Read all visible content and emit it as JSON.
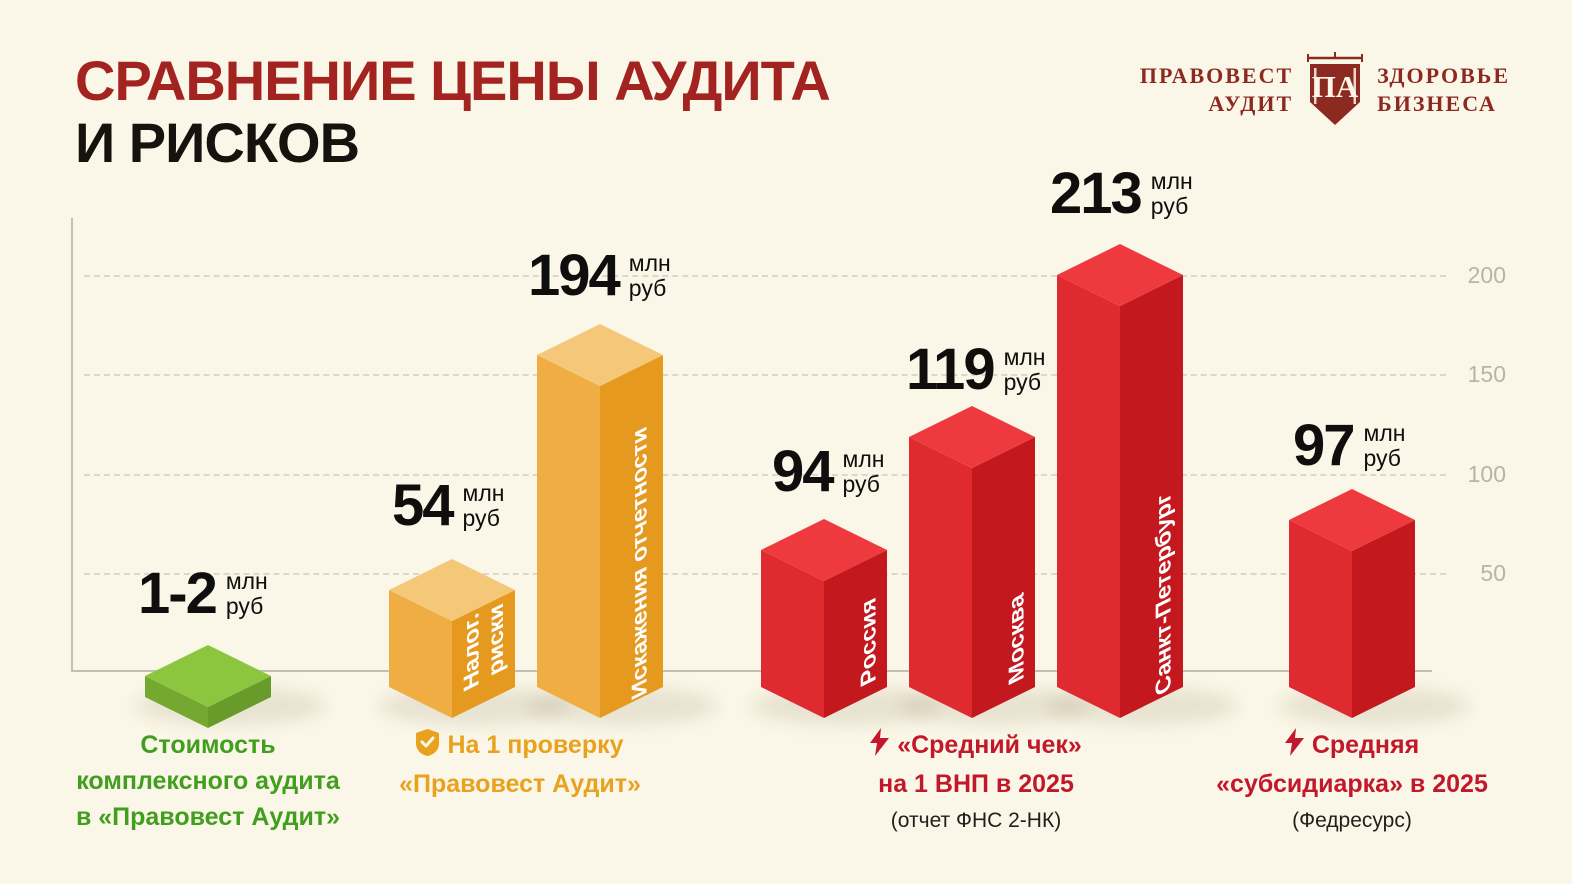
{
  "header": {
    "title_line1": "СРАВНЕНИЕ ЦЕНЫ АУДИТА",
    "title_line2": "И РИСКОВ"
  },
  "logo": {
    "name_line1": "ПРАВОВЕСТ",
    "name_line2": "АУДИТ",
    "monogram": "ПА",
    "tagline_line1": "ЗДОРОВЬЕ",
    "tagline_line2": "БИЗНЕСА"
  },
  "chart_data": {
    "type": "bar",
    "title": "Сравнение цены аудита и рисков",
    "unit": "млн руб",
    "unit_line1": "млн",
    "unit_line2": "руб",
    "ylim": [
      0,
      220
    ],
    "yticks": [
      50,
      100,
      150,
      200
    ],
    "ytick_labels": [
      "50",
      "100",
      "150",
      "200"
    ],
    "grid": "horizontal-dashed",
    "legend": "none",
    "bars": [
      {
        "group": "Стоимость комплексного аудита в «Правовест Аудит»",
        "label": "",
        "value_label": "1-2",
        "value": 1.5,
        "value_min": 1,
        "value_max": 2,
        "color": "green",
        "shape": "tile"
      },
      {
        "group": "На 1 проверку «Правовест Аудит»",
        "label": "Налог.\nриски",
        "value_label": "54",
        "value": 54,
        "color": "yellow",
        "shape": "column"
      },
      {
        "group": "На 1 проверку «Правовест Аудит»",
        "label": "Искажения отчетности",
        "value_label": "194",
        "value": 194,
        "color": "yellow",
        "shape": "column"
      },
      {
        "group": "«Средний чек» на 1 ВНП в 2025 (отчет ФНС 2-НК)",
        "label": "Россия",
        "value_label": "94",
        "value": 94,
        "color": "red",
        "shape": "column"
      },
      {
        "group": "«Средний чек» на 1 ВНП в 2025 (отчет ФНС 2-НК)",
        "label": "Москва",
        "value_label": "119",
        "value": 119,
        "color": "red",
        "shape": "column"
      },
      {
        "group": "«Средний чек» на 1 ВНП в 2025 (отчет ФНС 2-НК)",
        "label": "Санкт-Петербург",
        "value_label": "213",
        "value": 213,
        "color": "red",
        "shape": "column"
      },
      {
        "group": "Средняя «субсидиарка» в 2025 (Федресурс)",
        "label": "",
        "value_label": "97",
        "value": 97,
        "color": "red",
        "shape": "column"
      }
    ]
  },
  "captions": {
    "green": {
      "line1": "Стоимость",
      "line2": "комплексного аудита",
      "line3": "в «Правовест Аудит»"
    },
    "yellow": {
      "icon": "shield-check-icon",
      "line1": "На 1 проверку",
      "line2": "«Правовест Аудит»"
    },
    "fns": {
      "icon": "lightning-icon",
      "line1": "«Средний чек»",
      "line2": "на 1 ВНП в 2025",
      "note": "(отчет ФНС 2-НК)"
    },
    "fedresurs": {
      "icon": "lightning-icon",
      "line1": "Средняя",
      "line2": "«субсидиарка» в 2025",
      "note": "(Федресурс)"
    }
  },
  "colors": {
    "background": "#FBF7E8",
    "title_red": "#A32321",
    "title_black": "#16130F",
    "logo_red": "#8C2A21",
    "green_top": "#8CC63E",
    "green_left": "#74A831",
    "green_right": "#679C2B",
    "yellow_top": "#F4C878",
    "yellow_left": "#EFAD43",
    "yellow_right": "#E5991E",
    "red_top": "#EE3A3E",
    "red_left": "#DF2A30",
    "red_right": "#C2181E",
    "caption_green": "#429E1E",
    "caption_orange": "#E8A21F",
    "caption_red": "#C2182B",
    "axis_gray": "#C3BFB4",
    "tick_gray": "#B7B3A7"
  }
}
